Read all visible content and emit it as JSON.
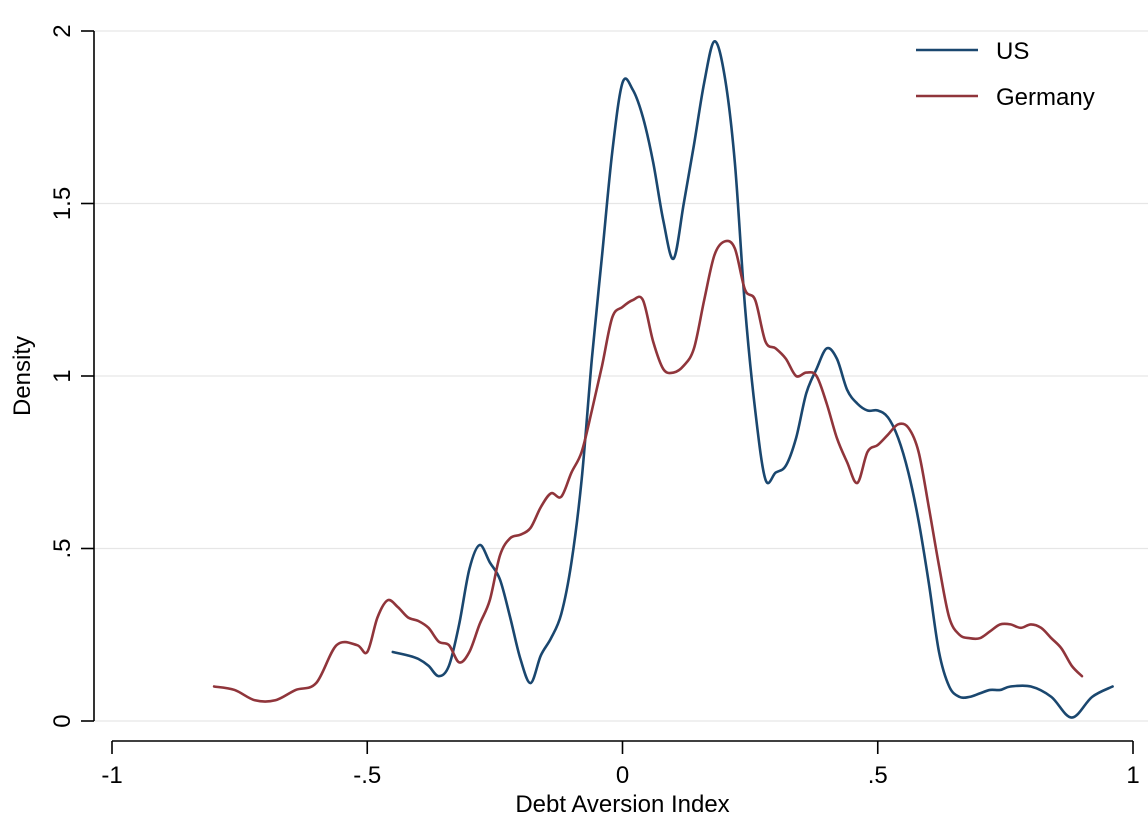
{
  "chart_data": {
    "type": "line",
    "title": "",
    "xlabel": "Debt Aversion Index",
    "ylabel": "Density",
    "xlim": [
      -1,
      1
    ],
    "ylim": [
      0,
      2
    ],
    "grid": true,
    "legend_position": "top-right",
    "xticks": [
      {
        "value": -1,
        "label": "-1"
      },
      {
        "value": -0.5,
        "label": "-.5"
      },
      {
        "value": 0,
        "label": "0"
      },
      {
        "value": 0.5,
        "label": ".5"
      },
      {
        "value": 1,
        "label": "1"
      }
    ],
    "yticks": [
      {
        "value": 0,
        "label": "0"
      },
      {
        "value": 0.5,
        "label": ".5"
      },
      {
        "value": 1,
        "label": "1"
      },
      {
        "value": 1.5,
        "label": "1.5"
      },
      {
        "value": 2,
        "label": "2"
      }
    ],
    "series": [
      {
        "name": "US",
        "color": "#1a476f",
        "x": [
          -0.45,
          -0.42,
          -0.4,
          -0.38,
          -0.36,
          -0.34,
          -0.32,
          -0.3,
          -0.28,
          -0.26,
          -0.24,
          -0.22,
          -0.2,
          -0.18,
          -0.16,
          -0.14,
          -0.12,
          -0.1,
          -0.08,
          -0.06,
          -0.04,
          -0.02,
          0.0,
          0.02,
          0.04,
          0.06,
          0.08,
          0.1,
          0.12,
          0.14,
          0.16,
          0.18,
          0.2,
          0.22,
          0.24,
          0.26,
          0.28,
          0.3,
          0.32,
          0.34,
          0.36,
          0.38,
          0.4,
          0.42,
          0.44,
          0.46,
          0.48,
          0.5,
          0.52,
          0.54,
          0.56,
          0.58,
          0.6,
          0.62,
          0.64,
          0.66,
          0.68,
          0.7,
          0.72,
          0.74,
          0.76,
          0.8,
          0.84,
          0.88,
          0.92,
          0.96
        ],
        "y": [
          0.2,
          0.19,
          0.18,
          0.16,
          0.13,
          0.16,
          0.28,
          0.44,
          0.51,
          0.46,
          0.41,
          0.3,
          0.18,
          0.11,
          0.19,
          0.24,
          0.31,
          0.46,
          0.7,
          1.05,
          1.35,
          1.65,
          1.85,
          1.83,
          1.75,
          1.62,
          1.45,
          1.34,
          1.5,
          1.67,
          1.85,
          1.97,
          1.87,
          1.62,
          1.2,
          0.9,
          0.7,
          0.72,
          0.74,
          0.82,
          0.95,
          1.02,
          1.08,
          1.05,
          0.96,
          0.92,
          0.9,
          0.9,
          0.88,
          0.82,
          0.72,
          0.58,
          0.4,
          0.2,
          0.1,
          0.07,
          0.07,
          0.08,
          0.09,
          0.09,
          0.1,
          0.1,
          0.07,
          0.01,
          0.07,
          0.1
        ]
      },
      {
        "name": "Germany",
        "color": "#90353b",
        "x": [
          -0.8,
          -0.76,
          -0.72,
          -0.68,
          -0.64,
          -0.6,
          -0.56,
          -0.52,
          -0.5,
          -0.48,
          -0.46,
          -0.44,
          -0.42,
          -0.4,
          -0.38,
          -0.36,
          -0.34,
          -0.32,
          -0.3,
          -0.28,
          -0.26,
          -0.24,
          -0.22,
          -0.2,
          -0.18,
          -0.16,
          -0.14,
          -0.12,
          -0.1,
          -0.08,
          -0.06,
          -0.04,
          -0.02,
          0.0,
          0.02,
          0.04,
          0.06,
          0.08,
          0.1,
          0.12,
          0.14,
          0.16,
          0.18,
          0.2,
          0.22,
          0.24,
          0.26,
          0.28,
          0.3,
          0.32,
          0.34,
          0.36,
          0.38,
          0.4,
          0.42,
          0.44,
          0.46,
          0.48,
          0.5,
          0.52,
          0.54,
          0.56,
          0.58,
          0.6,
          0.62,
          0.64,
          0.66,
          0.68,
          0.7,
          0.72,
          0.74,
          0.76,
          0.78,
          0.8,
          0.82,
          0.84,
          0.86,
          0.88,
          0.9
        ],
        "y": [
          0.1,
          0.09,
          0.06,
          0.06,
          0.09,
          0.11,
          0.22,
          0.22,
          0.2,
          0.3,
          0.35,
          0.33,
          0.3,
          0.29,
          0.27,
          0.23,
          0.22,
          0.17,
          0.2,
          0.28,
          0.35,
          0.48,
          0.53,
          0.54,
          0.56,
          0.62,
          0.66,
          0.65,
          0.72,
          0.78,
          0.9,
          1.03,
          1.17,
          1.2,
          1.22,
          1.22,
          1.1,
          1.02,
          1.01,
          1.03,
          1.08,
          1.22,
          1.35,
          1.39,
          1.37,
          1.25,
          1.22,
          1.1,
          1.08,
          1.05,
          1.0,
          1.01,
          1.0,
          0.92,
          0.82,
          0.75,
          0.69,
          0.78,
          0.8,
          0.83,
          0.86,
          0.85,
          0.78,
          0.62,
          0.45,
          0.3,
          0.25,
          0.24,
          0.24,
          0.26,
          0.28,
          0.28,
          0.27,
          0.28,
          0.27,
          0.24,
          0.21,
          0.16,
          0.13
        ]
      }
    ]
  }
}
